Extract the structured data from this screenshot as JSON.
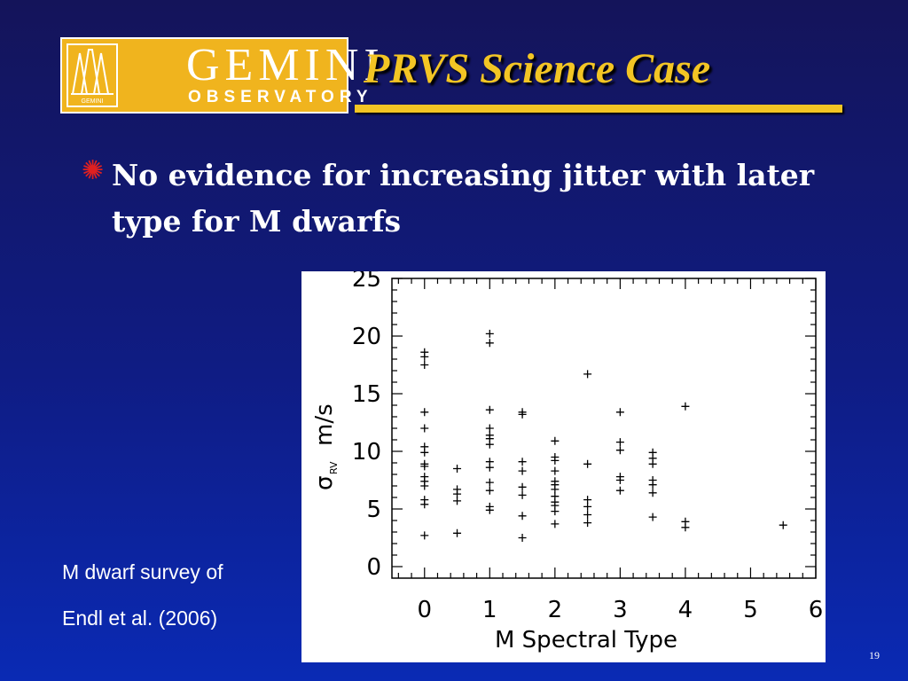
{
  "logo": {
    "name": "GEMINI",
    "sub": "OBSERVATORY",
    "small_mark": "GEMINI"
  },
  "slide": {
    "title": "PRVS Science Case",
    "bullet_glyph": "✺",
    "bullet_text": "No evidence for increasing jitter with later type for M dwarfs",
    "caption_line1": "M dwarf survey of",
    "caption_line2": "Endl et al. (2006)",
    "page_number": "19"
  },
  "colors": {
    "background_top": "#14145a",
    "background_bottom": "#0a2ab4",
    "title": "#f3c524",
    "logo_bg": "#f0b41e",
    "bullet_glyph": "#e02020"
  },
  "chart_data": {
    "type": "scatter",
    "marker": "+",
    "xlabel": "M Spectral Type",
    "ylabel_main": "σ",
    "ylabel_sub": "RV",
    "ylabel_unit": "m/s",
    "xlim": [
      -0.5,
      6
    ],
    "ylim": [
      -1,
      25
    ],
    "xticks": [
      "0",
      "1",
      "2",
      "3",
      "4",
      "5",
      "6"
    ],
    "yticks": [
      "0",
      "5",
      "10",
      "15",
      "20",
      "25"
    ],
    "grid": false,
    "points": [
      {
        "x": 0,
        "y": 18.6
      },
      {
        "x": 0,
        "y": 18.2
      },
      {
        "x": 0,
        "y": 17.5
      },
      {
        "x": 0,
        "y": 13.4
      },
      {
        "x": 0,
        "y": 12.0
      },
      {
        "x": 0,
        "y": 10.4
      },
      {
        "x": 0,
        "y": 9.9
      },
      {
        "x": 0,
        "y": 8.9
      },
      {
        "x": 0,
        "y": 8.7
      },
      {
        "x": 0,
        "y": 7.8
      },
      {
        "x": 0,
        "y": 7.4
      },
      {
        "x": 0,
        "y": 7.0
      },
      {
        "x": 0,
        "y": 5.8
      },
      {
        "x": 0,
        "y": 5.4
      },
      {
        "x": 0,
        "y": 2.7
      },
      {
        "x": 0.5,
        "y": 8.5
      },
      {
        "x": 0.5,
        "y": 6.7
      },
      {
        "x": 0.5,
        "y": 6.3
      },
      {
        "x": 0.5,
        "y": 5.7
      },
      {
        "x": 0.5,
        "y": 2.9
      },
      {
        "x": 1,
        "y": 20.2
      },
      {
        "x": 1,
        "y": 19.4
      },
      {
        "x": 1,
        "y": 13.6
      },
      {
        "x": 1,
        "y": 12.0
      },
      {
        "x": 1,
        "y": 11.4
      },
      {
        "x": 1,
        "y": 11.1
      },
      {
        "x": 1,
        "y": 10.6
      },
      {
        "x": 1,
        "y": 9.1
      },
      {
        "x": 1,
        "y": 8.6
      },
      {
        "x": 1,
        "y": 7.3
      },
      {
        "x": 1,
        "y": 6.6
      },
      {
        "x": 1,
        "y": 5.2
      },
      {
        "x": 1,
        "y": 4.9
      },
      {
        "x": 1.5,
        "y": 13.4
      },
      {
        "x": 1.5,
        "y": 13.2
      },
      {
        "x": 1.5,
        "y": 9.1
      },
      {
        "x": 1.5,
        "y": 8.3
      },
      {
        "x": 1.5,
        "y": 6.9
      },
      {
        "x": 1.5,
        "y": 6.2
      },
      {
        "x": 1.5,
        "y": 4.4
      },
      {
        "x": 1.5,
        "y": 2.5
      },
      {
        "x": 2,
        "y": 10.9
      },
      {
        "x": 2,
        "y": 9.5
      },
      {
        "x": 2,
        "y": 9.2
      },
      {
        "x": 2,
        "y": 8.3
      },
      {
        "x": 2,
        "y": 7.4
      },
      {
        "x": 2,
        "y": 7.1
      },
      {
        "x": 2,
        "y": 6.7
      },
      {
        "x": 2,
        "y": 6.1
      },
      {
        "x": 2,
        "y": 5.6
      },
      {
        "x": 2,
        "y": 5.3
      },
      {
        "x": 2,
        "y": 4.8
      },
      {
        "x": 2,
        "y": 3.7
      },
      {
        "x": 2.5,
        "y": 16.7
      },
      {
        "x": 2.5,
        "y": 8.9
      },
      {
        "x": 2.5,
        "y": 5.8
      },
      {
        "x": 2.5,
        "y": 5.2
      },
      {
        "x": 2.5,
        "y": 4.5
      },
      {
        "x": 2.5,
        "y": 3.8
      },
      {
        "x": 3,
        "y": 13.4
      },
      {
        "x": 3,
        "y": 10.8
      },
      {
        "x": 3,
        "y": 10.1
      },
      {
        "x": 3,
        "y": 7.8
      },
      {
        "x": 3,
        "y": 7.5
      },
      {
        "x": 3,
        "y": 6.6
      },
      {
        "x": 3.5,
        "y": 9.9
      },
      {
        "x": 3.5,
        "y": 9.4
      },
      {
        "x": 3.5,
        "y": 8.9
      },
      {
        "x": 3.5,
        "y": 7.5
      },
      {
        "x": 3.5,
        "y": 7.1
      },
      {
        "x": 3.5,
        "y": 6.4
      },
      {
        "x": 3.5,
        "y": 4.3
      },
      {
        "x": 4,
        "y": 13.9
      },
      {
        "x": 4,
        "y": 3.9
      },
      {
        "x": 4,
        "y": 3.4
      },
      {
        "x": 5.5,
        "y": 3.6
      }
    ]
  }
}
